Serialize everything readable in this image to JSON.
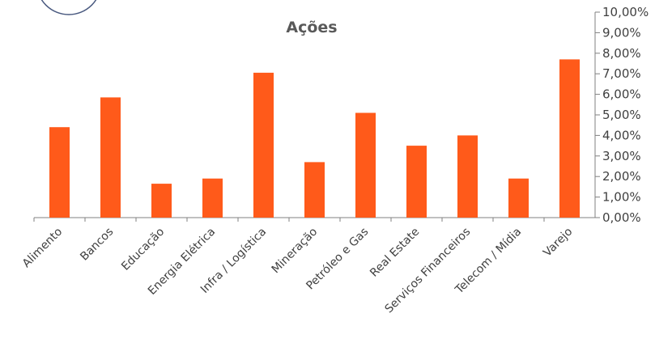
{
  "chart_data": {
    "type": "bar",
    "title": "Ações",
    "xlabel": "",
    "ylabel": "",
    "categories": [
      "Alimento",
      "Bancos",
      "Educação",
      "Energia Elétrica",
      "Infra / Logística",
      "Mineração",
      "Petróleo e Gas",
      "Real Estate",
      "Serviços Financeiros",
      "Telecom / Mídia",
      "Varejo"
    ],
    "values": [
      4.4,
      5.85,
      1.65,
      1.9,
      7.05,
      2.7,
      5.1,
      3.5,
      4.0,
      1.9,
      7.7
    ],
    "ylim": [
      0,
      10
    ],
    "yticks": [
      "0,00%",
      "1,00%",
      "2,00%",
      "3,00%",
      "4,00%",
      "5,00%",
      "6,00%",
      "7,00%",
      "8,00%",
      "9,00%",
      "10,00%"
    ],
    "y_axis_position": "right",
    "grid": false,
    "legend": "none",
    "bar_color": "#ff5a1a",
    "axis_color": "#808080"
  }
}
